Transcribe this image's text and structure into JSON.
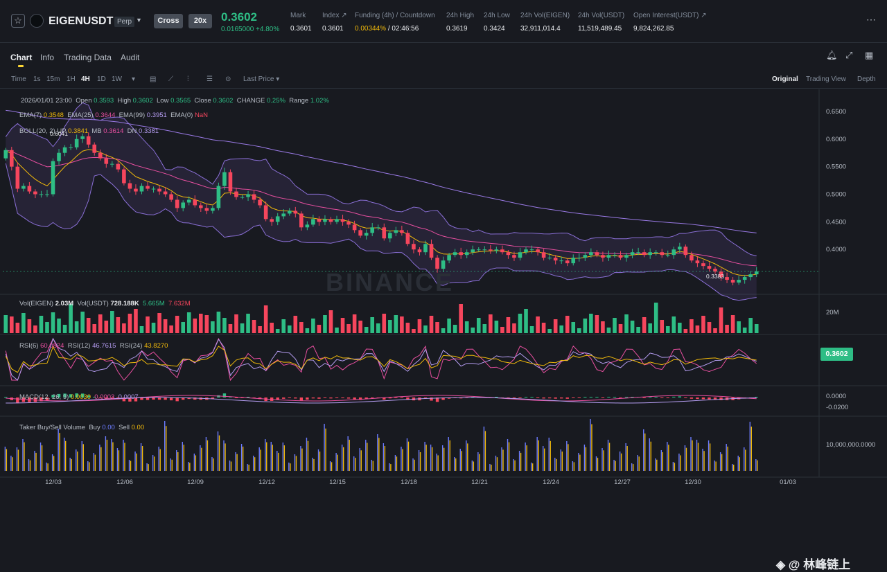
{
  "header": {
    "symbol": "EIGENUSDT",
    "contract_type": "Perp",
    "margin_mode": "Cross",
    "leverage": "20x",
    "last_price": "0.3602",
    "change": "0.0165000 +4.80%",
    "stats": [
      {
        "label": "Mark",
        "value": "0.3601"
      },
      {
        "label": "Index ↗",
        "value": "0.3601"
      },
      {
        "label": "Funding (4h) / Countdown",
        "value_a": "0.00344%",
        "value_b": " / 02:46:56"
      },
      {
        "label": "24h High",
        "value": "0.3619"
      },
      {
        "label": "24h Low",
        "value": "0.3424"
      },
      {
        "label": "24h Vol(EIGEN)",
        "value": "32,911,014.4"
      },
      {
        "label": "24h Vol(USDT)",
        "value": "11,519,489.45"
      },
      {
        "label": "Open Interest(USDT) ↗",
        "value": "9,824,262.85"
      }
    ]
  },
  "tabs": [
    "Chart",
    "Info",
    "Trading Data",
    "Audit"
  ],
  "toolbar": {
    "intervals": [
      "Time",
      "1s",
      "15m",
      "1H",
      "4H",
      "1D",
      "1W"
    ],
    "active_interval": "4H",
    "price_type": "Last Price",
    "views": [
      "Original",
      "Trading View",
      "Depth"
    ],
    "active_view": "Original"
  },
  "overlay": {
    "ohlc": {
      "date": "2026/01/01 23:00",
      "open": "0.3593",
      "high": "0.3602",
      "low": "0.3565",
      "close": "0.3602",
      "change": "0.25%",
      "range": "1.02%"
    },
    "ema": {
      "l7": "EMA(7)",
      "v7": "0.3548",
      "l25": "EMA(25)",
      "v25": "0.3644",
      "l99": "EMA(99)",
      "v99": "0.3951",
      "l0": "EMA(0)",
      "v0": "NaN"
    },
    "boll": {
      "label": "BOLL(20, 2)",
      "up_label": "UP",
      "up": "0.3841",
      "mb_label": "MB",
      "mb": "0.3614",
      "dn_label": "DN",
      "dn": "0.3381"
    },
    "vol": {
      "label": "Vol(EIGEN)",
      "v1": "2.03M",
      "label2": "Vol(USDT)",
      "v2": "728.188K",
      "v3": "5.665M",
      "v4": "7.632M"
    },
    "rsi": {
      "l6": "RSI(6)",
      "v6": "60.0824",
      "l12": "RSI(12)",
      "v12": "46.7615",
      "l24": "RSI(24)",
      "v24": "43.8270"
    },
    "macd": {
      "label": "MACD(12, 26, 9)",
      "v1": "0.0030",
      "v2": "0.0003",
      "v3": "0.0007"
    },
    "taker": {
      "label": "Taker Buy/Sell Volume",
      "buy_label": "Buy",
      "buy": "0.00",
      "sell_label": "Sell",
      "sell": "0.00"
    },
    "max_label": "0.6041",
    "min_label": "0.3383",
    "badge": "0.3602",
    "watermark": "BINANCE",
    "credit": "◈ @ 林峰链上"
  },
  "colors": {
    "up": "#2ebd85",
    "down": "#f6465d",
    "ema7": "#f0b90b",
    "ema25": "#e84fa0",
    "ema99": "#9a7ae6",
    "boll": "#8a6fd6"
  },
  "chart_data": {
    "type": "candlestick",
    "x_labels": [
      "12/03",
      "12/06",
      "12/09",
      "12/12",
      "12/15",
      "12/18",
      "12/21",
      "12/24",
      "12/27",
      "12/30",
      "01/03"
    ],
    "price_axis": [
      "0.6500",
      "0.6000",
      "0.5500",
      "0.5000",
      "0.4500",
      "0.4000"
    ],
    "ylim": [
      0.32,
      0.68
    ],
    "vol_axis": [
      "20M"
    ],
    "rsi_axis": [
      "50.0000"
    ],
    "macd_axis": [
      "0.0000",
      "-0.0200"
    ],
    "taker_axis": [
      "10,000,000.0000"
    ],
    "closes": [
      0.58,
      0.55,
      0.51,
      0.515,
      0.505,
      0.5,
      0.5,
      0.5,
      0.56,
      0.575,
      0.585,
      0.585,
      0.6,
      0.605,
      0.59,
      0.575,
      0.565,
      0.555,
      0.555,
      0.545,
      0.52,
      0.51,
      0.505,
      0.515,
      0.51,
      0.51,
      0.505,
      0.5,
      0.49,
      0.475,
      0.485,
      0.49,
      0.48,
      0.475,
      0.47,
      0.475,
      0.515,
      0.54,
      0.505,
      0.495,
      0.495,
      0.5,
      0.49,
      0.48,
      0.455,
      0.45,
      0.46,
      0.465,
      0.47,
      0.465,
      0.44,
      0.445,
      0.455,
      0.45,
      0.455,
      0.45,
      0.455,
      0.45,
      0.445,
      0.435,
      0.425,
      0.43,
      0.44,
      0.44,
      0.42,
      0.43,
      0.435,
      0.43,
      0.41,
      0.4,
      0.395,
      0.41,
      0.385,
      0.365,
      0.38,
      0.39,
      0.395,
      0.39,
      0.395,
      0.4,
      0.4,
      0.4,
      0.398,
      0.4,
      0.395,
      0.39,
      0.385,
      0.395,
      0.4,
      0.4,
      0.395,
      0.385,
      0.385,
      0.38,
      0.38,
      0.375,
      0.385,
      0.385,
      0.39,
      0.395,
      0.39,
      0.385,
      0.39,
      0.39,
      0.385,
      0.39,
      0.395,
      0.395,
      0.39,
      0.395,
      0.395,
      0.39,
      0.39,
      0.4,
      0.405,
      0.39,
      0.38,
      0.375,
      0.37,
      0.365,
      0.36,
      0.35,
      0.345,
      0.34,
      0.345,
      0.35,
      0.355,
      0.3602
    ]
  }
}
